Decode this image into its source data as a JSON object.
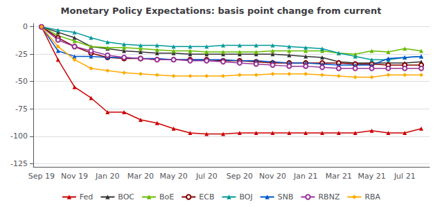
{
  "chart_data": {
    "type": "line",
    "title": "Monetary Policy Expectations: basis point change from current",
    "categories": [
      "Sep 19",
      null,
      "Nov 19",
      null,
      "Jan 20",
      null,
      "Mar 20",
      null,
      "May 20",
      null,
      "Jul 20",
      null,
      "Sep 20",
      null,
      "Nov 20",
      null,
      "Jan 21",
      null,
      "Mar 21",
      null,
      "May 21",
      null,
      "Jul 21",
      null
    ],
    "ylim": [
      -128,
      3
    ],
    "yticks": [
      0,
      -25,
      -50,
      -75,
      -100,
      -125
    ],
    "grid": true,
    "legend": "bottom",
    "series": [
      {
        "name": "Fed",
        "color": "#cc0000",
        "marker": "triangle",
        "values": [
          0,
          -30,
          -55,
          -65,
          -78,
          -78,
          -85,
          -88,
          -93,
          -97,
          -98,
          -98,
          -97,
          -97,
          -97,
          -97,
          -97,
          -97,
          -97,
          -97,
          -95,
          -97,
          -97,
          -93
        ]
      },
      {
        "name": "BOC",
        "color": "#333333",
        "marker": "triangle",
        "values": [
          0,
          -5,
          -10,
          -18,
          -20,
          -22,
          -23,
          -24,
          -24,
          -25,
          -25,
          -25,
          -25,
          -25,
          -25,
          -26,
          -27,
          -28,
          -32,
          -33,
          -33,
          -33,
          -33,
          -32
        ]
      },
      {
        "name": "BoE",
        "color": "#66bb00",
        "marker": "triangle",
        "values": [
          0,
          -8,
          -13,
          -18,
          -19,
          -19,
          -20,
          -21,
          -22,
          -22,
          -23,
          -23,
          -23,
          -23,
          -22,
          -22,
          -22,
          -22,
          -24,
          -25,
          -22,
          -23,
          -20,
          -22
        ]
      },
      {
        "name": "ECB",
        "color": "#800000",
        "marker": "circle",
        "values": [
          0,
          -10,
          -18,
          -24,
          -28,
          -29,
          -29,
          -30,
          -30,
          -30,
          -30,
          -31,
          -31,
          -32,
          -33,
          -33,
          -33,
          -33,
          -33,
          -34,
          -34,
          -35,
          -35,
          -35
        ]
      },
      {
        "name": "BOJ",
        "color": "#009999",
        "marker": "triangle",
        "values": [
          0,
          -3,
          -5,
          -10,
          -14,
          -16,
          -17,
          -17,
          -18,
          -18,
          -18,
          -17,
          -17,
          -17,
          -17,
          -18,
          -19,
          -20,
          -24,
          -27,
          -30,
          -30,
          -28,
          -27
        ]
      },
      {
        "name": "SNB",
        "color": "#0055cc",
        "marker": "triangle",
        "values": [
          0,
          -22,
          -27,
          -27,
          -28,
          -28,
          -29,
          -29,
          -30,
          -30,
          -30,
          -30,
          -31,
          -31,
          -32,
          -33,
          -33,
          -34,
          -35,
          -35,
          -35,
          -29,
          -28,
          -27
        ]
      },
      {
        "name": "RBNZ",
        "color": "#993399",
        "marker": "circle",
        "values": [
          0,
          -12,
          -18,
          -22,
          -26,
          -28,
          -29,
          -30,
          -30,
          -31,
          -31,
          -32,
          -33,
          -34,
          -35,
          -36,
          -36,
          -37,
          -38,
          -38,
          -38,
          -38,
          -38,
          -38
        ]
      },
      {
        "name": "RBA",
        "color": "#ffaa00",
        "marker": "diamond",
        "values": [
          0,
          -18,
          -30,
          -38,
          -40,
          -42,
          -43,
          -44,
          -45,
          -45,
          -45,
          -45,
          -44,
          -44,
          -43,
          -43,
          -43,
          -44,
          -45,
          -46,
          -46,
          -44,
          -44,
          -44
        ]
      }
    ]
  }
}
